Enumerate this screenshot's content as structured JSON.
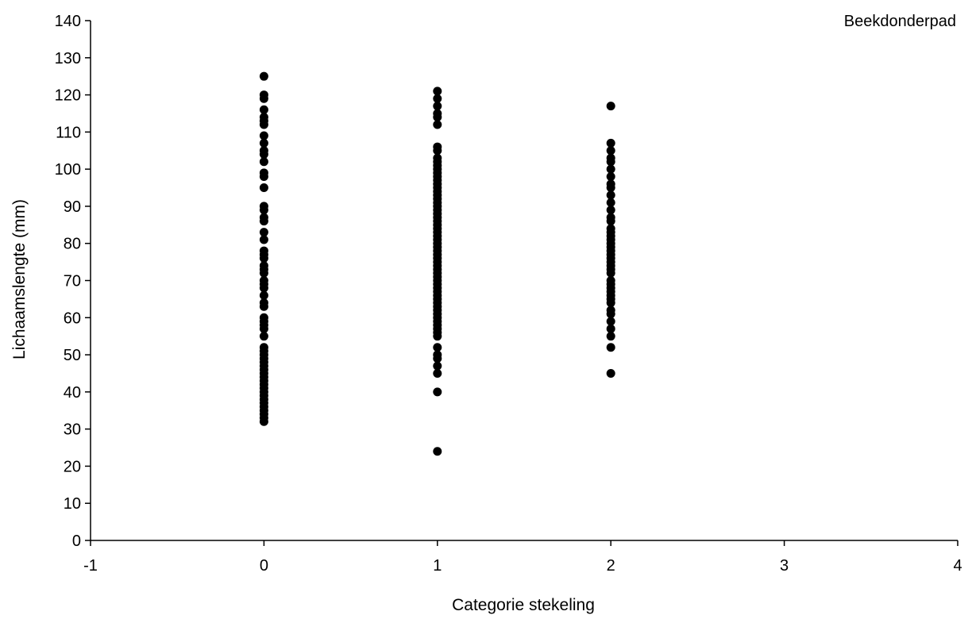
{
  "chart_data": {
    "type": "scatter",
    "title": "",
    "annotation": "Beekdonderpad",
    "xlabel": "Categorie stekeling",
    "ylabel": "Lichaamslengte (mm)",
    "xlim": [
      -1,
      4
    ],
    "ylim": [
      0,
      140
    ],
    "xticks": [
      -1,
      0,
      1,
      2,
      3,
      4
    ],
    "yticks": [
      0,
      10,
      20,
      30,
      40,
      50,
      60,
      70,
      80,
      90,
      100,
      110,
      120,
      130,
      140
    ],
    "grid": false,
    "legend": "none",
    "marker_color": "#000000",
    "series": [
      {
        "x": 0,
        "values": [
          125,
          120,
          119,
          116,
          114,
          113,
          112,
          109,
          107,
          105,
          104,
          102,
          99,
          98,
          95,
          90,
          89,
          87,
          86,
          83,
          81,
          78,
          77,
          76,
          74,
          73,
          72,
          70,
          69,
          68,
          66,
          64,
          63,
          60,
          59,
          58,
          57,
          55,
          52,
          51,
          50,
          49,
          48,
          47,
          46,
          45,
          44,
          43,
          42,
          41,
          40,
          39,
          38,
          37,
          36,
          35,
          34,
          33,
          32
        ]
      },
      {
        "x": 1,
        "values": [
          121,
          119,
          117,
          115,
          114,
          112,
          106,
          105,
          103,
          102,
          101,
          100,
          99,
          98,
          97,
          96,
          95,
          94,
          93,
          92,
          91,
          90,
          89,
          88,
          87,
          86,
          85,
          84,
          83,
          82,
          81,
          80,
          79,
          78,
          77,
          76,
          75,
          74,
          73,
          72,
          71,
          70,
          69,
          68,
          67,
          66,
          65,
          64,
          63,
          62,
          61,
          60,
          59,
          58,
          57,
          56,
          55,
          52,
          50,
          49,
          47,
          45,
          40,
          24
        ]
      },
      {
        "x": 2,
        "values": [
          117,
          107,
          105,
          103,
          102,
          100,
          98,
          96,
          95,
          93,
          91,
          89,
          87,
          86,
          84,
          83,
          82,
          81,
          80,
          79,
          78,
          77,
          76,
          75,
          74,
          73,
          72,
          70,
          69,
          68,
          67,
          66,
          65,
          64,
          62,
          61,
          59,
          57,
          55,
          52,
          45
        ]
      }
    ]
  }
}
